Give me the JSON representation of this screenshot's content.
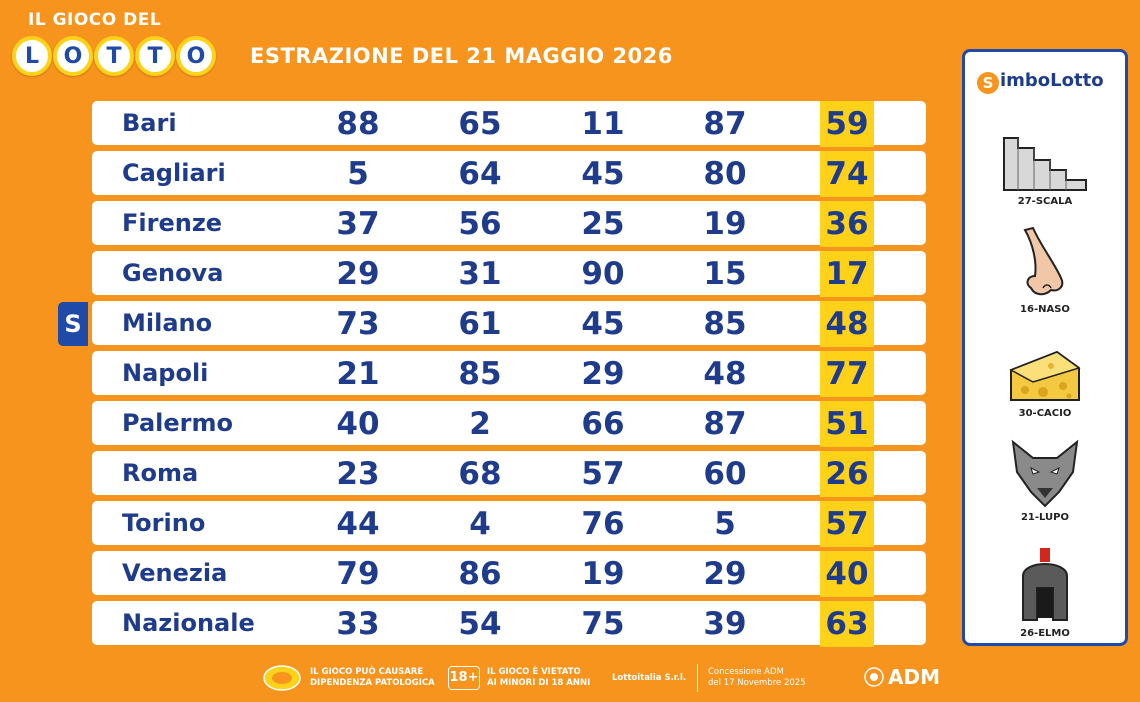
{
  "logo": {
    "top_text": "IL GIOCO DEL",
    "letters": [
      "L",
      "O",
      "T",
      "T",
      "O"
    ]
  },
  "title": "ESTRAZIONE DEL 21 MAGGIO 2026",
  "marker_glyph": "S",
  "rows": [
    {
      "city": "Bari",
      "numbers": [
        "88",
        "65",
        "11",
        "87",
        "59"
      ]
    },
    {
      "city": "Cagliari",
      "numbers": [
        "5",
        "64",
        "45",
        "80",
        "74"
      ]
    },
    {
      "city": "Firenze",
      "numbers": [
        "37",
        "56",
        "25",
        "19",
        "36"
      ]
    },
    {
      "city": "Genova",
      "numbers": [
        "29",
        "31",
        "90",
        "15",
        "17"
      ]
    },
    {
      "city": "Milano",
      "numbers": [
        "73",
        "61",
        "45",
        "85",
        "48"
      ]
    },
    {
      "city": "Napoli",
      "numbers": [
        "21",
        "85",
        "29",
        "48",
        "77"
      ]
    },
    {
      "city": "Palermo",
      "numbers": [
        "40",
        "2",
        "66",
        "87",
        "51"
      ]
    },
    {
      "city": "Roma",
      "numbers": [
        "23",
        "68",
        "57",
        "60",
        "26"
      ]
    },
    {
      "city": "Torino",
      "numbers": [
        "44",
        "4",
        "76",
        "5",
        "57"
      ]
    },
    {
      "city": "Venezia",
      "numbers": [
        "79",
        "86",
        "19",
        "29",
        "40"
      ]
    },
    {
      "city": "Nazionale",
      "numbers": [
        "33",
        "54",
        "75",
        "39",
        "63"
      ]
    }
  ],
  "simbolotto": {
    "title_initial": "S",
    "title_rest": "imboLotto",
    "symbols": [
      {
        "label": "27-SCALA",
        "icon": "stairs-icon"
      },
      {
        "label": "16-NASO",
        "icon": "nose-icon"
      },
      {
        "label": "30-CACIO",
        "icon": "cheese-icon"
      },
      {
        "label": "21-LUPO",
        "icon": "wolf-icon"
      },
      {
        "label": "26-ELMO",
        "icon": "helmet-icon"
      }
    ]
  },
  "footer": {
    "warning1_line1": "IL GIOCO PUÒ CAUSARE",
    "warning1_line2": "DIPENDENZA PATOLOGICA",
    "age_badge": "18+",
    "warning2_line1": "IL GIOCO È VIETATO",
    "warning2_line2": "AI MINORI DI 18 ANNI",
    "company": "Lottoitalia S.r.l.",
    "concession_line1": "Concessione ADM",
    "concession_line2": "del 17 Novembre 2025",
    "adm": "ADM"
  },
  "colors": {
    "background": "#f7941d",
    "number_blue": "#1f3b8c",
    "highlight_yellow": "#ffd21a"
  }
}
